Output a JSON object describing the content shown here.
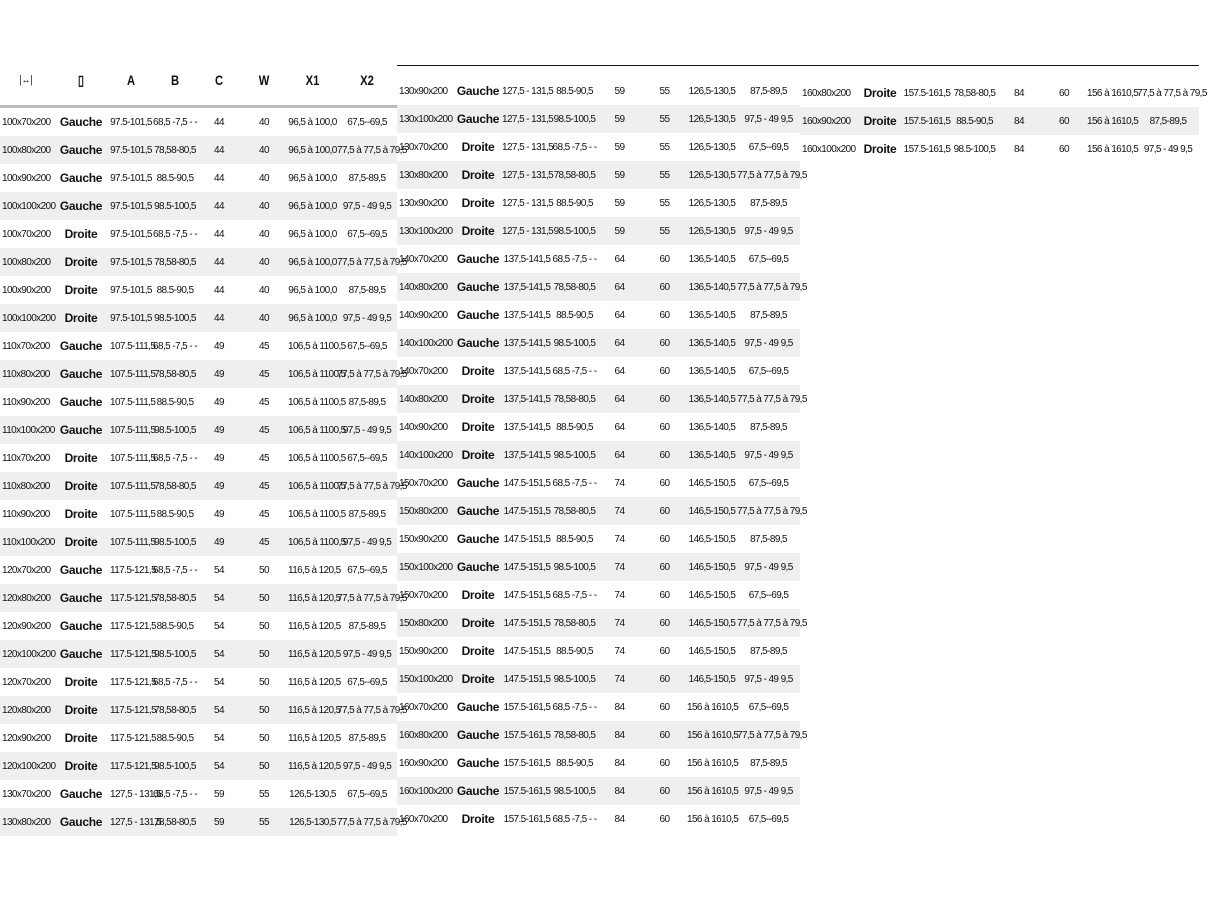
{
  "header": {
    "columns": [
      "",
      "",
      "A",
      "B",
      "C",
      "W",
      "X1",
      "X2"
    ],
    "icons": [
      "width-arrows-icon",
      "door-icon"
    ]
  },
  "panels": [
    [
      [
        "100x70x200",
        "Gauche",
        "97.5-101,5",
        "68,5 -7,5 - -",
        "44",
        "40",
        "96,5 à 100,0",
        "67,5--69,5"
      ],
      [
        "100x80x200",
        "Gauche",
        "97.5-101,5",
        "78,58-80,5",
        "44",
        "40",
        "96,5 à 100,0",
        "77,5 à 77,5 à 79,5"
      ],
      [
        "100x90x200",
        "Gauche",
        "97.5-101,5",
        "88.5-90,5",
        "44",
        "40",
        "96,5 à 100,0",
        "87,5-89,5"
      ],
      [
        "100x100x200",
        "Gauche",
        "97.5-101,5",
        "98.5-100,5",
        "44",
        "40",
        "96,5 à 100,0",
        "97,5 - 49 9,5"
      ],
      [
        "100x70x200",
        "Droite",
        "97.5-101,5",
        "68,5 -7,5 - -",
        "44",
        "40",
        "96,5 à 100,0",
        "67,5--69,5"
      ],
      [
        "100x80x200",
        "Droite",
        "97.5-101,5",
        "78,58-80,5",
        "44",
        "40",
        "96,5 à 100,0",
        "77,5 à 77,5 à 79,5"
      ],
      [
        "100x90x200",
        "Droite",
        "97.5-101,5",
        "88.5-90,5",
        "44",
        "40",
        "96,5 à 100,0",
        "87,5-89,5"
      ],
      [
        "100x100x200",
        "Droite",
        "97.5-101,5",
        "98.5-100,5",
        "44",
        "40",
        "96,5 à 100,0",
        "97,5 - 49 9,5"
      ],
      [
        "110x70x200",
        "Gauche",
        "107.5-111,5",
        "68,5 -7,5 - -",
        "49",
        "45",
        "106,5 à 1100,5",
        "67,5--69,5"
      ],
      [
        "110x80x200",
        "Gauche",
        "107.5-111,5",
        "78,58-80,5",
        "49",
        "45",
        "106,5 à 1100,5",
        "77,5 à 77,5 à 79,5"
      ],
      [
        "110x90x200",
        "Gauche",
        "107.5-111,5",
        "88.5-90,5",
        "49",
        "45",
        "106,5 à 1100,5",
        "87,5-89,5"
      ],
      [
        "110x100x200",
        "Gauche",
        "107.5-111,5",
        "98.5-100,5",
        "49",
        "45",
        "106,5 à 1100,5",
        "97,5 - 49 9,5"
      ],
      [
        "110x70x200",
        "Droite",
        "107.5-111,5",
        "68,5 -7,5 - -",
        "49",
        "45",
        "106,5 à 1100,5",
        "67,5--69,5"
      ],
      [
        "110x80x200",
        "Droite",
        "107.5-111,5",
        "78,58-80,5",
        "49",
        "45",
        "106,5 à 1100,5",
        "77,5 à 77,5 à 79,5"
      ],
      [
        "110x90x200",
        "Droite",
        "107.5-111,5",
        "88.5-90,5",
        "49",
        "45",
        "106,5 à 1100,5",
        "87,5-89,5"
      ],
      [
        "110x100x200",
        "Droite",
        "107.5-111,5",
        "98.5-100,5",
        "49",
        "45",
        "106,5 à 1100,5",
        "97,5 - 49 9,5"
      ],
      [
        "120x70x200",
        "Gauche",
        "117.5-121,5",
        "68,5 -7,5 - -",
        "54",
        "50",
        "116,5 à 120,5",
        "67,5--69,5"
      ],
      [
        "120x80x200",
        "Gauche",
        "117.5-121,5",
        "78,58-80,5",
        "54",
        "50",
        "116,5 à 120,5",
        "77,5 à 77,5 à 79,5"
      ],
      [
        "120x90x200",
        "Gauche",
        "117.5-121,5",
        "88.5-90,5",
        "54",
        "50",
        "116,5 à 120,5",
        "87,5-89,5"
      ],
      [
        "120x100x200",
        "Gauche",
        "117.5-121,5",
        "98.5-100,5",
        "54",
        "50",
        "116,5 à 120,5",
        "97,5 - 49 9,5"
      ],
      [
        "120x70x200",
        "Droite",
        "117.5-121,5",
        "68,5 -7,5 - -",
        "54",
        "50",
        "116,5 à 120,5",
        "67,5--69,5"
      ],
      [
        "120x80x200",
        "Droite",
        "117.5-121,5",
        "78,58-80,5",
        "54",
        "50",
        "116,5 à 120,5",
        "77,5 à 77,5 à 79,5"
      ],
      [
        "120x90x200",
        "Droite",
        "117.5-121,5",
        "88.5-90,5",
        "54",
        "50",
        "116,5 à 120,5",
        "87,5-89,5"
      ],
      [
        "120x100x200",
        "Droite",
        "117.5-121,5",
        "98.5-100,5",
        "54",
        "50",
        "116,5 à 120,5",
        "97,5 - 49 9,5"
      ],
      [
        "130x70x200",
        "Gauche",
        "127,5 - 131,5",
        "68,5 -7,5 - -",
        "59",
        "55",
        "126,5-130,5",
        "67,5--69,5"
      ],
      [
        "130x80x200",
        "Gauche",
        "127,5 - 131,5",
        "78,58-80,5",
        "59",
        "55",
        "126,5-130,5",
        "77,5 à 77,5 à 79,5"
      ]
    ],
    [
      [
        "130x90x200",
        "Gauche",
        "127,5 - 131,5",
        "88.5-90,5",
        "59",
        "55",
        "126,5-130,5",
        "87,5-89,5"
      ],
      [
        "130x100x200",
        "Gauche",
        "127,5 - 131,5",
        "98.5-100,5",
        "59",
        "55",
        "126,5-130,5",
        "97,5 - 49 9,5"
      ],
      [
        "130x70x200",
        "Droite",
        "127,5 - 131,5",
        "68,5 -7,5 - -",
        "59",
        "55",
        "126,5-130,5",
        "67,5--69,5"
      ],
      [
        "130x80x200",
        "Droite",
        "127,5 - 131,5",
        "78,58-80,5",
        "59",
        "55",
        "126,5-130,5",
        "77,5 à 77,5 à 79,5"
      ],
      [
        "130x90x200",
        "Droite",
        "127,5 - 131,5",
        "88.5-90,5",
        "59",
        "55",
        "126,5-130,5",
        "87,5-89,5"
      ],
      [
        "130x100x200",
        "Droite",
        "127,5 - 131,5",
        "98.5-100,5",
        "59",
        "55",
        "126,5-130,5",
        "97,5 - 49 9,5"
      ],
      [
        "140x70x200",
        "Gauche",
        "137,5-141,5",
        "68,5 -7,5 - -",
        "64",
        "60",
        "136,5-140,5",
        "67,5--69,5"
      ],
      [
        "140x80x200",
        "Gauche",
        "137,5-141,5",
        "78,58-80,5",
        "64",
        "60",
        "136,5-140,5",
        "77,5 à 77,5 à 79,5"
      ],
      [
        "140x90x200",
        "Gauche",
        "137,5-141,5",
        "88.5-90,5",
        "64",
        "60",
        "136,5-140,5",
        "87,5-89,5"
      ],
      [
        "140x100x200",
        "Gauche",
        "137,5-141,5",
        "98.5-100,5",
        "64",
        "60",
        "136,5-140,5",
        "97,5 - 49 9,5"
      ],
      [
        "140x70x200",
        "Droite",
        "137,5-141,5",
        "68,5 -7,5 - -",
        "64",
        "60",
        "136,5-140,5",
        "67,5--69,5"
      ],
      [
        "140x80x200",
        "Droite",
        "137,5-141,5",
        "78,58-80,5",
        "64",
        "60",
        "136,5-140,5",
        "77,5 à 77,5 à 79,5"
      ],
      [
        "140x90x200",
        "Droite",
        "137,5-141,5",
        "88.5-90,5",
        "64",
        "60",
        "136,5-140,5",
        "87,5-89,5"
      ],
      [
        "140x100x200",
        "Droite",
        "137,5-141,5",
        "98.5-100,5",
        "64",
        "60",
        "136,5-140,5",
        "97,5 - 49 9,5"
      ],
      [
        "150x70x200",
        "Gauche",
        "147.5-151,5",
        "68,5 -7,5 - -",
        "74",
        "60",
        "146,5-150,5",
        "67,5--69,5"
      ],
      [
        "150x80x200",
        "Gauche",
        "147.5-151,5",
        "78,58-80,5",
        "74",
        "60",
        "146,5-150,5",
        "77,5 à 77,5 à 79,5"
      ],
      [
        "150x90x200",
        "Gauche",
        "147.5-151,5",
        "88.5-90,5",
        "74",
        "60",
        "146,5-150,5",
        "87,5-89,5"
      ],
      [
        "150x100x200",
        "Gauche",
        "147.5-151,5",
        "98.5-100,5",
        "74",
        "60",
        "146,5-150,5",
        "97,5 - 49 9,5"
      ],
      [
        "150x70x200",
        "Droite",
        "147.5-151,5",
        "68,5 -7,5 - -",
        "74",
        "60",
        "146,5-150,5",
        "67,5--69,5"
      ],
      [
        "150x80x200",
        "Droite",
        "147.5-151,5",
        "78,58-80,5",
        "74",
        "60",
        "146,5-150,5",
        "77,5 à 77,5 à 79,5"
      ],
      [
        "150x90x200",
        "Droite",
        "147.5-151,5",
        "88.5-90,5",
        "74",
        "60",
        "146,5-150,5",
        "87,5-89,5"
      ],
      [
        "150x100x200",
        "Droite",
        "147.5-151,5",
        "98.5-100,5",
        "74",
        "60",
        "146,5-150,5",
        "97,5 - 49 9,5"
      ],
      [
        "160x70x200",
        "Gauche",
        "157.5-161,5",
        "68,5 -7,5 - -",
        "84",
        "60",
        "156 à 1610,5",
        "67,5--69,5"
      ],
      [
        "160x80x200",
        "Gauche",
        "157.5-161,5",
        "78,58-80,5",
        "84",
        "60",
        "156 à 1610,5",
        "77,5 à 77,5 à 79,5"
      ],
      [
        "160x90x200",
        "Gauche",
        "157.5-161,5",
        "88.5-90,5",
        "84",
        "60",
        "156 à 1610,5",
        "87,5-89,5"
      ],
      [
        "160x100x200",
        "Gauche",
        "157.5-161,5",
        "98.5-100,5",
        "84",
        "60",
        "156 à 1610,5",
        "97,5 - 49 9,5"
      ],
      [
        "160x70x200",
        "Droite",
        "157.5-161,5",
        "68,5 -7,5 - -",
        "84",
        "60",
        "156 à 1610,5",
        "67,5--69,5"
      ]
    ],
    [
      [
        "160x80x200",
        "Droite",
        "157.5-161,5",
        "78,58-80,5",
        "84",
        "60",
        "156 à 1610,5",
        "77,5 à 77,5 à 79,5"
      ],
      [
        "160x90x200",
        "Droite",
        "157.5-161,5",
        "88.5-90,5",
        "84",
        "60",
        "156 à 1610,5",
        "87,5-89,5"
      ],
      [
        "160x100x200",
        "Droite",
        "157.5-161,5",
        "98.5-100,5",
        "84",
        "60",
        "156 à 1610,5",
        "97,5 - 49 9,5"
      ]
    ]
  ]
}
